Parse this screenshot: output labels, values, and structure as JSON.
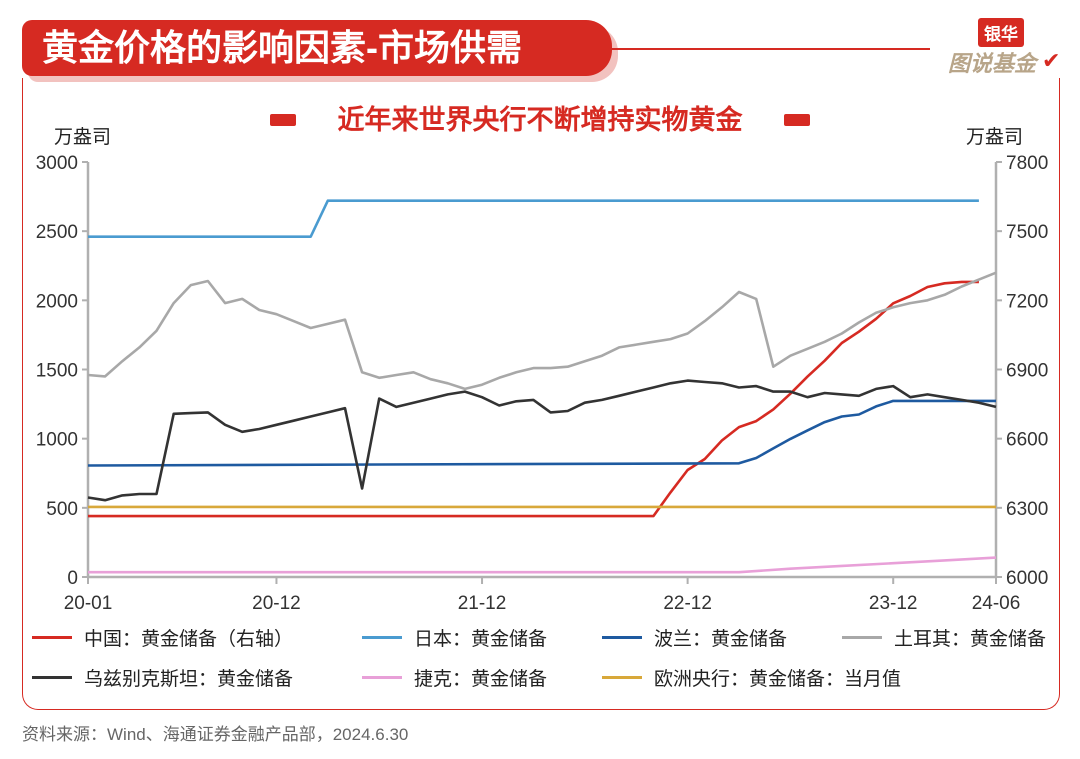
{
  "header": {
    "title": "黄金价格的影响因素-市场供需",
    "logo_top": "银华",
    "logo_bottom": "图说基金",
    "logo_mark": "✔"
  },
  "chart_data": {
    "type": "line",
    "title": "近年来世界央行不断增持实物黄金",
    "ylabel": "万盎司",
    "y2label": "万盎司",
    "ylim": [
      0,
      3000
    ],
    "y2lim": [
      6000,
      7800
    ],
    "y_ticks": [
      "0",
      "500",
      "1000",
      "1500",
      "2000",
      "2500",
      "3000"
    ],
    "y2_ticks": [
      "6000",
      "6300",
      "6600",
      "6900",
      "7200",
      "7500",
      "7800"
    ],
    "x_tick_labels": [
      {
        "label": "20-01",
        "month": 0
      },
      {
        "label": "20-12",
        "month": 11
      },
      {
        "label": "21-12",
        "month": 23
      },
      {
        "label": "22-12",
        "month": 35
      },
      {
        "label": "23-12",
        "month": 47
      },
      {
        "label": "24-06",
        "month": 53
      }
    ],
    "x_range": [
      "2020-01",
      "2024-06"
    ],
    "grid": false,
    "legend_position": "bottom",
    "series": [
      {
        "name": "中国：黄金储备（右轴）",
        "axis": "right",
        "color": "#d62a22",
        "x": [
          "2020-01",
          "2022-10",
          "2022-11",
          "2022-12",
          "2023-01",
          "2023-02",
          "2023-03",
          "2023-04",
          "2023-05",
          "2023-06",
          "2023-07",
          "2023-08",
          "2023-09",
          "2023-10",
          "2023-11",
          "2023-12",
          "2024-01",
          "2024-02",
          "2024-03",
          "2024-04",
          "2024-05"
        ],
        "values": [
          6264,
          6264,
          6367,
          6464,
          6512,
          6592,
          6650,
          6676,
          6727,
          6795,
          6869,
          6938,
          7015,
          7064,
          7120,
          7187,
          7219,
          7258,
          7274,
          7280,
          7280
        ]
      },
      {
        "name": "日本：黄金储备",
        "axis": "left",
        "color": "#4a9bd0",
        "x": [
          "2020-01",
          "2021-02",
          "2021-03",
          "2024-05"
        ],
        "values": [
          2460,
          2460,
          2720,
          2720
        ]
      },
      {
        "name": "波兰：黄金储备",
        "axis": "left",
        "color": "#1e5aa0",
        "x": [
          "2020-01",
          "2023-03",
          "2023-04",
          "2023-05",
          "2023-06",
          "2023-07",
          "2023-08",
          "2023-09",
          "2023-10",
          "2023-11",
          "2023-12",
          "2024-01",
          "2024-06"
        ],
        "values": [
          806,
          822,
          860,
          930,
          998,
          1060,
          1120,
          1160,
          1175,
          1233,
          1273,
          1273,
          1273
        ]
      },
      {
        "name": "土耳其：黄金储备",
        "axis": "left",
        "color": "#a8a8a8",
        "x": [
          "2020-01",
          "2020-02",
          "2020-03",
          "2020-04",
          "2020-05",
          "2020-06",
          "2020-07",
          "2020-08",
          "2020-09",
          "2020-10",
          "2020-11",
          "2020-12",
          "2021-01",
          "2021-02",
          "2021-03",
          "2021-04",
          "2021-05",
          "2021-06",
          "2021-07",
          "2021-08",
          "2021-09",
          "2021-10",
          "2021-11",
          "2021-12",
          "2022-01",
          "2022-02",
          "2022-03",
          "2022-04",
          "2022-05",
          "2022-06",
          "2022-07",
          "2022-08",
          "2022-09",
          "2022-10",
          "2022-11",
          "2022-12",
          "2023-01",
          "2023-02",
          "2023-03",
          "2023-04",
          "2023-05",
          "2023-06",
          "2023-07",
          "2023-08",
          "2023-09",
          "2023-10",
          "2023-11",
          "2023-12",
          "2024-01",
          "2024-02",
          "2024-03",
          "2024-04",
          "2024-05",
          "2024-06"
        ],
        "values": [
          1460,
          1450,
          1560,
          1660,
          1780,
          1980,
          2110,
          2140,
          1980,
          2010,
          1930,
          1900,
          1850,
          1800,
          1830,
          1860,
          1480,
          1440,
          1460,
          1480,
          1430,
          1400,
          1360,
          1390,
          1440,
          1480,
          1510,
          1510,
          1520,
          1560,
          1600,
          1660,
          1680,
          1700,
          1720,
          1760,
          1850,
          1950,
          2060,
          2010,
          1520,
          1600,
          1650,
          1700,
          1760,
          1840,
          1910,
          1950,
          1980,
          2000,
          2040,
          2100,
          2150,
          2200
        ]
      },
      {
        "name": "乌兹别克斯坦：黄金储备",
        "axis": "left",
        "color": "#333333",
        "x": [
          "2020-01",
          "2020-02",
          "2020-03",
          "2020-04",
          "2020-05",
          "2020-06",
          "2020-07",
          "2020-08",
          "2020-09",
          "2020-10",
          "2020-11",
          "2020-12",
          "2021-01",
          "2021-02",
          "2021-03",
          "2021-04",
          "2021-05",
          "2021-06",
          "2021-07",
          "2021-08",
          "2021-09",
          "2021-10",
          "2021-11",
          "2021-12",
          "2022-01",
          "2022-02",
          "2022-03",
          "2022-04",
          "2022-05",
          "2022-06",
          "2022-07",
          "2022-08",
          "2022-09",
          "2022-10",
          "2022-11",
          "2022-12",
          "2023-01",
          "2023-02",
          "2023-03",
          "2023-04",
          "2023-05",
          "2023-06",
          "2023-07",
          "2023-08",
          "2023-09",
          "2023-10",
          "2023-11",
          "2023-12",
          "2024-01",
          "2024-02",
          "2024-03",
          "2024-04",
          "2024-05",
          "2024-06"
        ],
        "values": [
          575,
          555,
          590,
          600,
          600,
          1180,
          1185,
          1190,
          1100,
          1050,
          1070,
          1100,
          1130,
          1160,
          1190,
          1220,
          640,
          1290,
          1230,
          1260,
          1290,
          1320,
          1340,
          1300,
          1240,
          1270,
          1280,
          1190,
          1200,
          1260,
          1280,
          1310,
          1340,
          1370,
          1400,
          1420,
          1410,
          1400,
          1370,
          1380,
          1340,
          1340,
          1300,
          1330,
          1320,
          1310,
          1360,
          1380,
          1300,
          1320,
          1300,
          1280,
          1260,
          1230
        ]
      },
      {
        "name": "捷克：黄金储备",
        "axis": "left",
        "color": "#e8a0d8",
        "x": [
          "2020-01",
          "2023-03",
          "2023-06",
          "2023-09",
          "2023-12",
          "2024-03",
          "2024-06"
        ],
        "values": [
          35,
          35,
          60,
          80,
          100,
          120,
          140
        ]
      },
      {
        "name": "欧洲央行：黄金储备：当月值",
        "axis": "left",
        "color": "#d8a83a",
        "x": [
          "2020-01",
          "2024-06"
        ],
        "values": [
          507,
          507
        ]
      }
    ]
  },
  "legend": [
    {
      "label": "中国：黄金储备（右轴）",
      "color": "#d62a22"
    },
    {
      "label": "日本：黄金储备",
      "color": "#4a9bd0"
    },
    {
      "label": "波兰：黄金储备",
      "color": "#1e5aa0"
    },
    {
      "label": "土耳其：黄金储备",
      "color": "#a8a8a8"
    },
    {
      "label": "乌兹别克斯坦：黄金储备",
      "color": "#333333"
    },
    {
      "label": "捷克：黄金储备",
      "color": "#e8a0d8"
    },
    {
      "label": "欧洲央行：黄金储备：当月值",
      "color": "#d8a83a"
    }
  ],
  "source": "资料来源：Wind、海通证券金融产品部，2024.6.30"
}
